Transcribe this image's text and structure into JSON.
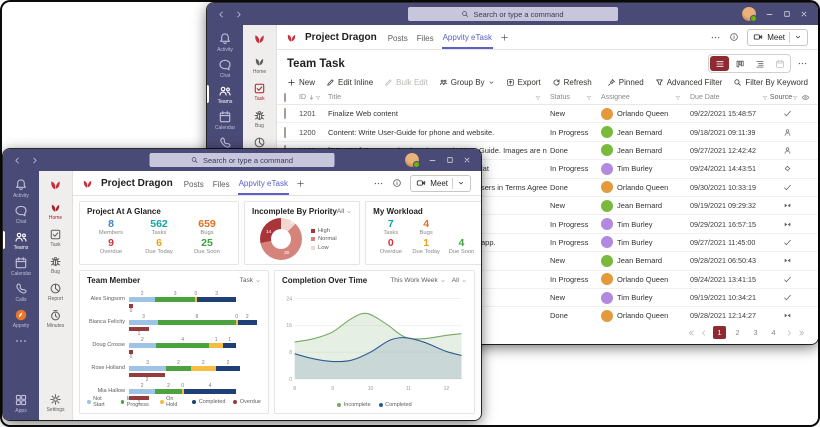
{
  "shared": {
    "search_placeholder": "Search or type a command"
  },
  "back_window": {
    "header": {
      "team_name": "Project Dragon",
      "tabs": [
        "Posts",
        "Files"
      ],
      "active_tab": "Appvity eTask",
      "meet_label": "Meet"
    },
    "nav_rail": {
      "items": [
        {
          "icon": "bell",
          "label": "Activity"
        },
        {
          "icon": "chat",
          "label": "Chat"
        },
        {
          "icon": "teams",
          "label": "Teams",
          "selected": true
        },
        {
          "icon": "calendar",
          "label": "Calendar"
        },
        {
          "icon": "phone",
          "label": "Calls"
        },
        {
          "icon": "appvity",
          "label": "Appvity"
        }
      ]
    },
    "app_rail": {
      "items": [
        {
          "icon": "leaf",
          "label": "Home"
        },
        {
          "icon": "task",
          "label": "Task",
          "selected": true
        },
        {
          "icon": "bug",
          "label": "Bug"
        },
        {
          "icon": "report",
          "label": "Report"
        }
      ]
    },
    "page": {
      "title": "Team Task",
      "commands": [
        {
          "icon": "plus",
          "label": "New"
        },
        {
          "icon": "pencil",
          "label": "Edit Inline"
        },
        {
          "icon": "pencil",
          "label": "Bulk Edit",
          "disabled": true
        },
        {
          "icon": "group",
          "label": "Group By",
          "caret": true
        },
        {
          "icon": "export",
          "label": "Export"
        },
        {
          "icon": "refresh",
          "label": "Refresh"
        }
      ],
      "filters": [
        {
          "icon": "pin",
          "label": "Pinned"
        },
        {
          "icon": "funnel",
          "label": "Advanced Filter"
        },
        {
          "icon": "search",
          "label": "Filter By Keyword"
        }
      ],
      "columns": {
        "id": "ID",
        "title": "Title",
        "status": "Status",
        "assignee": "Assignee",
        "due": "Due Date",
        "source": "Source"
      },
      "rows": [
        {
          "id": "1201",
          "title": "Finalize Web content",
          "status": "New",
          "assignee": "Orlando Queen",
          "avatar": "#e39a3b",
          "due": "09/22/2021 15:48:57",
          "source": "check"
        },
        {
          "id": "1200",
          "title": "Content: Write User-Guide for phone and website.",
          "status": "In Progress",
          "assignee": "Jean Bernard",
          "avatar": "#79b93c",
          "due": "09/18/2021 09:11:39",
          "source": "user"
        },
        {
          "id": "1199",
          "title": "[REVIEW] Content: check on images in User-Guide. Images are not clear.",
          "status": "Done",
          "assignee": "Jean Bernard",
          "avatar": "#79b93c",
          "due": "09/27/2021 12:42:42",
          "source": "user"
        },
        {
          "id": "",
          "title": "lat",
          "status": "In Progress",
          "assignee": "Tim Burley",
          "avatar": "#b18ae0",
          "due": "09/24/2021 14:43:51",
          "source": "diamond"
        },
        {
          "id": "",
          "title": "sers in Terms Agreement In…",
          "status": "Done",
          "assignee": "Orlando Queen",
          "avatar": "#e39a3b",
          "due": "09/30/2021 10:33:19",
          "source": "check"
        },
        {
          "id": "",
          "title": "",
          "status": "New",
          "assignee": "Jean Bernard",
          "avatar": "#79b93c",
          "due": "09/19/2021 09:29:32",
          "source": "bowtie"
        },
        {
          "id": "",
          "title": "",
          "status": "In Progress",
          "assignee": "Tim Burley",
          "avatar": "#b18ae0",
          "due": "09/29/2021 16:57:15",
          "source": "bowtie"
        },
        {
          "id": "",
          "title": "app.",
          "status": "In Progress",
          "assignee": "Tim Burley",
          "avatar": "#b18ae0",
          "due": "09/27/2021 11:45:00",
          "source": "check"
        },
        {
          "id": "",
          "title": "",
          "status": "New",
          "assignee": "Jean Bernard",
          "avatar": "#79b93c",
          "due": "09/28/2021 06:50:43",
          "source": "bowtie"
        },
        {
          "id": "",
          "title": "",
          "status": "In Progress",
          "assignee": "Orlando Queen",
          "avatar": "#e39a3b",
          "due": "09/24/2021 13:41:15",
          "source": "check"
        },
        {
          "id": "",
          "title": "",
          "status": "New",
          "assignee": "Tim Burley",
          "avatar": "#b18ae0",
          "due": "09/19/2021 10:34:21",
          "source": "check"
        },
        {
          "id": "",
          "title": "",
          "status": "Done",
          "assignee": "Orlando Queen",
          "avatar": "#e39a3b",
          "due": "09/28/2021 12:14:27",
          "source": "bowtie"
        }
      ],
      "pagination": {
        "pages": [
          "1",
          "2",
          "3",
          "4"
        ],
        "active": "1"
      }
    }
  },
  "front_window": {
    "header": {
      "team_name": "Project Dragon",
      "tabs": [
        "Posts",
        "Files"
      ],
      "active_tab": "Appvity eTask",
      "meet_label": "Meet"
    },
    "nav_rail": {
      "items": [
        {
          "icon": "bell",
          "label": "Activity"
        },
        {
          "icon": "chat",
          "label": "Chat"
        },
        {
          "icon": "teams",
          "label": "Teams",
          "selected": true
        },
        {
          "icon": "calendar",
          "label": "Calendar"
        },
        {
          "icon": "phone",
          "label": "Calls"
        },
        {
          "icon": "appvity",
          "label": "Appvity"
        },
        {
          "icon": "dots",
          "label": ""
        }
      ],
      "bottom": {
        "icon": "apps",
        "label": "Apps"
      }
    },
    "app_rail": {
      "items": [
        {
          "icon": "leaf",
          "label": "Home",
          "selected": true
        },
        {
          "icon": "task",
          "label": "Task"
        },
        {
          "icon": "bug",
          "label": "Bug"
        },
        {
          "icon": "report",
          "label": "Report"
        },
        {
          "icon": "minutes",
          "label": "Minutes"
        }
      ],
      "bottom": {
        "icon": "gear",
        "label": "Settings"
      }
    },
    "cards": {
      "glance": {
        "title": "Project At A Glance",
        "stats": [
          {
            "value": "8",
            "label": "Members",
            "color": "#3f7fd4"
          },
          {
            "value": "562",
            "label": "Tasks",
            "color": "#11a3a3"
          },
          {
            "value": "659",
            "label": "Bugs",
            "color": "#e0701f"
          },
          {
            "value": "9",
            "label": "Overdue",
            "color": "#d13438"
          },
          {
            "value": "6",
            "label": "Due Today",
            "color": "#eaa113"
          },
          {
            "value": "25",
            "label": "Due Soon",
            "color": "#3da43d"
          }
        ]
      },
      "priority": {
        "title": "Incomplete By Priority",
        "filter": "All"
      },
      "workload": {
        "title": "My Workload",
        "stats": [
          {
            "value": "7",
            "label": "Tasks",
            "color": "#11a3a3"
          },
          {
            "value": "4",
            "label": "Bugs",
            "color": "#e0701f"
          },
          {
            "value": "0",
            "label": "Overdue",
            "color": "#d13438"
          },
          {
            "value": "1",
            "label": "Due Today",
            "color": "#eaa113"
          },
          {
            "value": "4",
            "label": "Due Soon",
            "color": "#3da43d"
          }
        ]
      },
      "team": {
        "title": "Team Member",
        "filter": "Task"
      },
      "completion": {
        "title": "Completion Over Time",
        "filters": [
          "This Work Week",
          "All"
        ]
      }
    }
  },
  "chart_data": [
    {
      "type": "pie",
      "title": "Incomplete By Priority",
      "donut": true,
      "legend_position": "right",
      "labels": [
        "High",
        "Normal",
        "Low"
      ],
      "values": [
        14,
        30,
        6
      ],
      "colors": [
        "#a93439",
        "#d5837b",
        "#f2d6d0"
      ]
    },
    {
      "type": "bar",
      "title": "Team Member",
      "orientation": "horizontal",
      "stacked": true,
      "categories": [
        "Alex Singsorn",
        "Bianca Felicity",
        "Doug Crosse",
        "Rose Holland",
        "Mia Hallow"
      ],
      "series": [
        {
          "name": "Not Start",
          "color": "#9dc3e6",
          "values": [
            2,
            3,
            2,
            3,
            2
          ]
        },
        {
          "name": "In Progress",
          "color": "#4ba23f",
          "values": [
            3,
            8,
            4,
            2,
            2
          ]
        },
        {
          "name": "On Hold",
          "color": "#f5bd42",
          "values": [
            0,
            0,
            1,
            2,
            0
          ]
        },
        {
          "name": "Completed",
          "color": "#1f3f77",
          "values": [
            3,
            2,
            1,
            2,
            4
          ]
        },
        {
          "name": "Overdue",
          "color": "#963b3b",
          "values": [
            0,
            1,
            0,
            2,
            1
          ]
        }
      ]
    },
    {
      "type": "area",
      "title": "Completion Over Time",
      "xlim": [
        8,
        12.4
      ],
      "ylim": [
        0,
        25
      ],
      "xticks": [
        8,
        9,
        10,
        11,
        12
      ],
      "yticks": [
        0,
        8,
        16,
        24
      ],
      "legend": [
        "Incomplete",
        "Completed"
      ],
      "grid": true,
      "series": [
        {
          "name": "Incomplete",
          "color": "#76a865",
          "fill": "rgba(118,168,101,0.18)",
          "points": [
            [
              8,
              11
            ],
            [
              8.5,
              12
            ],
            [
              9,
              14
            ],
            [
              9.5,
              18
            ],
            [
              9.9,
              19.5
            ],
            [
              10.4,
              16.5
            ],
            [
              10.9,
              12.5
            ],
            [
              11.4,
              12
            ],
            [
              12,
              13
            ],
            [
              12.4,
              13.5
            ]
          ]
        },
        {
          "name": "Completed",
          "color": "#2f5b94",
          "fill": "rgba(47,91,148,0.16)",
          "points": [
            [
              8,
              7.5
            ],
            [
              8.5,
              6
            ],
            [
              9,
              5.2
            ],
            [
              9.5,
              5.6
            ],
            [
              10,
              8
            ],
            [
              10.5,
              11.5
            ],
            [
              10.9,
              12.3
            ],
            [
              11.4,
              11
            ],
            [
              12,
              8.2
            ],
            [
              12.4,
              7
            ]
          ]
        }
      ]
    }
  ]
}
